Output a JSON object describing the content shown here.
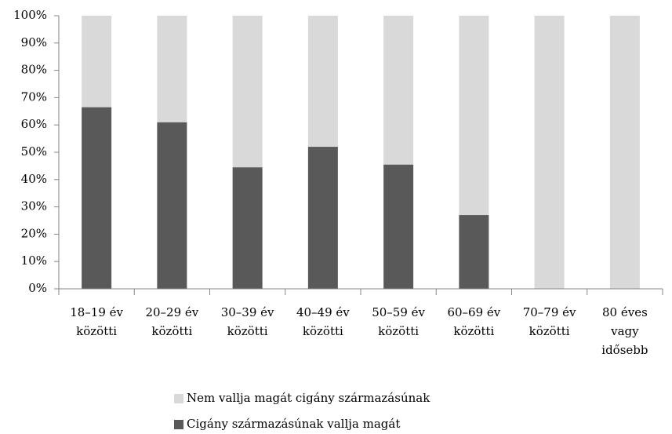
{
  "chart_data": {
    "type": "stacked-bar",
    "categories": [
      "18–19 év\nközötti",
      "20–29 év\nközötti",
      "30–39 év\nközötti",
      "40–49 év\nközötti",
      "50–59 év\nközötti",
      "60–69 év\nközötti",
      "70–79 év\nközötti",
      "80 éves\nvagy\nidősebb"
    ],
    "series": [
      {
        "name": "Cigány származásúnak vallja magát",
        "color": "#595959",
        "values": [
          66.5,
          61,
          44.5,
          52,
          45.5,
          27,
          0,
          0
        ]
      },
      {
        "name": "Nem vallja magát cigány származásúnak",
        "color": "#d9d9d9",
        "values": [
          33.5,
          39,
          55.5,
          48,
          54.5,
          73,
          100,
          100
        ]
      }
    ],
    "ylim": [
      0,
      100
    ],
    "yticks": [
      {
        "value": 0,
        "label": "0%"
      },
      {
        "value": 10,
        "label": "10%"
      },
      {
        "value": 20,
        "label": "20%"
      },
      {
        "value": 30,
        "label": "30%"
      },
      {
        "value": 40,
        "label": "40%"
      },
      {
        "value": 50,
        "label": "50%"
      },
      {
        "value": 60,
        "label": "60%"
      },
      {
        "value": 70,
        "label": "70%"
      },
      {
        "value": 80,
        "label": "80%"
      },
      {
        "value": 90,
        "label": "90%"
      },
      {
        "value": 100,
        "label": "100%"
      }
    ],
    "legend": "bottom"
  }
}
